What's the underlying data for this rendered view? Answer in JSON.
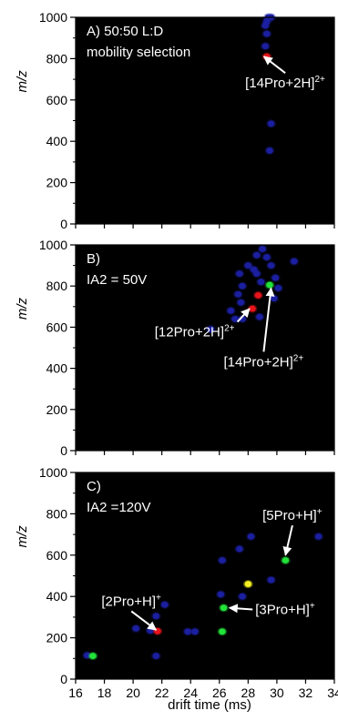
{
  "figure": {
    "xlabel": "drift time (ms)",
    "ylabel": "m/z",
    "x_ticks": [
      "16",
      "18",
      "20",
      "22",
      "24",
      "26",
      "28",
      "30",
      "32",
      "34"
    ],
    "y_ticks": [
      "0",
      "200",
      "400",
      "600",
      "800",
      "1000"
    ]
  },
  "colors": {
    "background": "#000000",
    "blue": "#1b1fa0",
    "green": "#22e33a",
    "yellow": "#f5f021",
    "red": "#e8141a",
    "annotation": "#ffffff"
  },
  "chart_data": [
    {
      "type": "scatter",
      "panel_label": "A) 50:50 L:D",
      "panel_label_2": "mobility selection",
      "xlim": [
        16,
        34
      ],
      "ylim": [
        0,
        1000
      ],
      "points": [
        {
          "x": 29.4,
          "y": 1000,
          "c": "blue"
        },
        {
          "x": 29.6,
          "y": 1000,
          "c": "blue"
        },
        {
          "x": 29.3,
          "y": 980,
          "c": "blue"
        },
        {
          "x": 29.2,
          "y": 960,
          "c": "blue"
        },
        {
          "x": 29.3,
          "y": 920,
          "c": "blue"
        },
        {
          "x": 29.2,
          "y": 860,
          "c": "blue"
        },
        {
          "x": 29.3,
          "y": 810,
          "c": "red"
        },
        {
          "x": 29.6,
          "y": 485,
          "c": "blue"
        },
        {
          "x": 29.5,
          "y": 355,
          "c": "blue"
        }
      ],
      "annotations": [
        {
          "text": "[14Pro+2H]",
          "sup": "2+",
          "x": 27.8,
          "y": 660,
          "arrow_to": [
            29.1,
            810
          ]
        }
      ]
    },
    {
      "type": "scatter",
      "panel_label": "B)",
      "panel_label_2": "IA2 = 50V",
      "xlim": [
        16,
        34
      ],
      "ylim": [
        0,
        1000
      ],
      "points": [
        {
          "x": 29.0,
          "y": 980,
          "c": "blue"
        },
        {
          "x": 28.6,
          "y": 950,
          "c": "blue"
        },
        {
          "x": 29.3,
          "y": 940,
          "c": "blue"
        },
        {
          "x": 28.0,
          "y": 900,
          "c": "blue"
        },
        {
          "x": 28.4,
          "y": 880,
          "c": "blue"
        },
        {
          "x": 29.6,
          "y": 900,
          "c": "blue"
        },
        {
          "x": 27.4,
          "y": 860,
          "c": "blue"
        },
        {
          "x": 28.6,
          "y": 860,
          "c": "blue"
        },
        {
          "x": 31.2,
          "y": 920,
          "c": "blue"
        },
        {
          "x": 29.9,
          "y": 840,
          "c": "blue"
        },
        {
          "x": 27.6,
          "y": 800,
          "c": "blue"
        },
        {
          "x": 28.9,
          "y": 820,
          "c": "blue"
        },
        {
          "x": 30.1,
          "y": 790,
          "c": "blue"
        },
        {
          "x": 29.5,
          "y": 805,
          "c": "green"
        },
        {
          "x": 27.3,
          "y": 760,
          "c": "blue"
        },
        {
          "x": 28.7,
          "y": 755,
          "c": "red"
        },
        {
          "x": 29.8,
          "y": 740,
          "c": "blue"
        },
        {
          "x": 27.5,
          "y": 720,
          "c": "blue"
        },
        {
          "x": 28.3,
          "y": 690,
          "c": "red"
        },
        {
          "x": 26.8,
          "y": 680,
          "c": "blue"
        },
        {
          "x": 27.1,
          "y": 640,
          "c": "blue"
        },
        {
          "x": 27.6,
          "y": 640,
          "c": "blue"
        },
        {
          "x": 28.8,
          "y": 650,
          "c": "blue"
        },
        {
          "x": 25.4,
          "y": 590,
          "c": "blue"
        }
      ],
      "annotations": [
        {
          "text": "[12Pro+2H]",
          "sup": "2+",
          "x": 21.5,
          "y": 555,
          "arrow_to": [
            28.1,
            690
          ]
        },
        {
          "text": "[14Pro+2H]",
          "sup": "2+",
          "x": 26.3,
          "y": 410,
          "arrow_to": [
            29.6,
            790
          ]
        }
      ]
    },
    {
      "type": "scatter",
      "panel_label": "C)",
      "panel_label_2": "IA2 =120V",
      "xlim": [
        16,
        34
      ],
      "ylim": [
        0,
        1000
      ],
      "points": [
        {
          "x": 16.8,
          "y": 115,
          "c": "blue"
        },
        {
          "x": 17.2,
          "y": 112,
          "c": "green"
        },
        {
          "x": 21.6,
          "y": 112,
          "c": "blue"
        },
        {
          "x": 20.2,
          "y": 245,
          "c": "blue"
        },
        {
          "x": 21.2,
          "y": 235,
          "c": "blue"
        },
        {
          "x": 21.7,
          "y": 232,
          "c": "red"
        },
        {
          "x": 21.6,
          "y": 305,
          "c": "blue"
        },
        {
          "x": 22.2,
          "y": 360,
          "c": "blue"
        },
        {
          "x": 23.8,
          "y": 230,
          "c": "blue"
        },
        {
          "x": 24.3,
          "y": 230,
          "c": "blue"
        },
        {
          "x": 26.2,
          "y": 230,
          "c": "green"
        },
        {
          "x": 26.3,
          "y": 345,
          "c": "green"
        },
        {
          "x": 26.1,
          "y": 410,
          "c": "blue"
        },
        {
          "x": 27.6,
          "y": 400,
          "c": "blue"
        },
        {
          "x": 28.0,
          "y": 460,
          "c": "yellow"
        },
        {
          "x": 29.6,
          "y": 480,
          "c": "blue"
        },
        {
          "x": 26.2,
          "y": 575,
          "c": "blue"
        },
        {
          "x": 27.4,
          "y": 630,
          "c": "blue"
        },
        {
          "x": 28.2,
          "y": 690,
          "c": "blue"
        },
        {
          "x": 30.6,
          "y": 575,
          "c": "green"
        },
        {
          "x": 32.9,
          "y": 690,
          "c": "blue"
        }
      ],
      "annotations": [
        {
          "text": "[2Pro+H]",
          "sup": "+",
          "x": 17.8,
          "y": 355,
          "arrow_to": [
            21.6,
            238
          ]
        },
        {
          "text": "[3Pro+H]",
          "sup": "+",
          "x": 28.5,
          "y": 315,
          "arrow_to": [
            26.7,
            345
          ]
        },
        {
          "text": "[5Pro+H]",
          "sup": "+",
          "x": 29.0,
          "y": 770,
          "arrow_to": [
            30.6,
            600
          ]
        }
      ]
    }
  ]
}
